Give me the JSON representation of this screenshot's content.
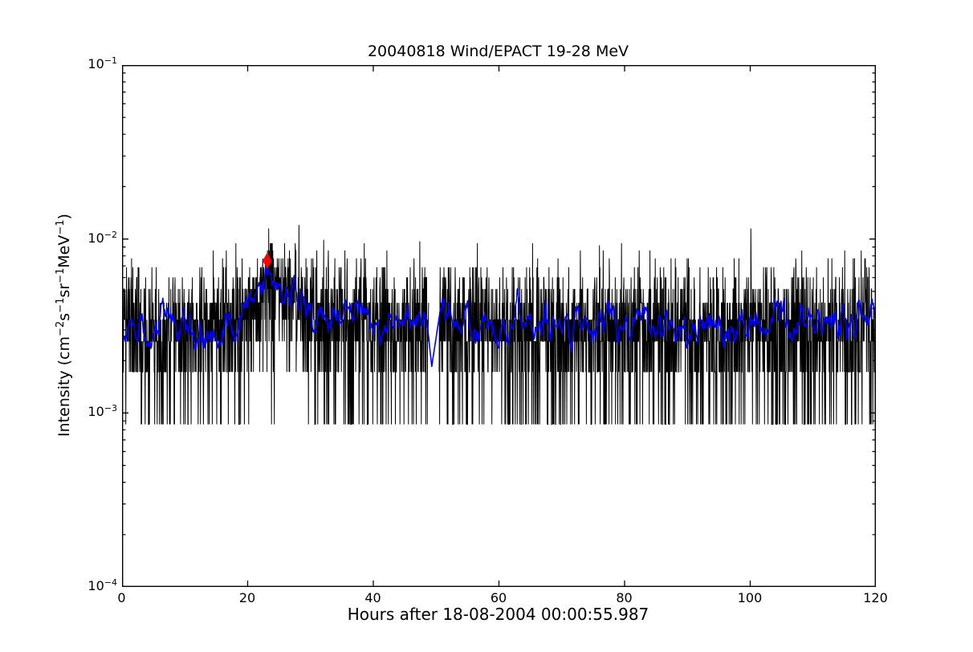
{
  "figure": {
    "background_color": "#ffffff",
    "text_color": "#000000"
  },
  "chart_data": {
    "type": "line",
    "title": "20040818 Wind/EPACT 19-28 MeV",
    "xlabel": "Hours after 18-08-2004 00:00:55.987",
    "ylabel": "Intensity (cm−2s−1sr−1MeV−1)",
    "ylabel_rich": [
      [
        "t",
        "Intensity (cm"
      ],
      [
        "sup",
        "−2"
      ],
      [
        "t",
        "s"
      ],
      [
        "sup",
        "−1"
      ],
      [
        "t",
        "sr"
      ],
      [
        "sup",
        "−1"
      ],
      [
        "t",
        "MeV"
      ],
      [
        "sup",
        "−1"
      ],
      [
        "t",
        ")"
      ]
    ],
    "xlim": [
      0,
      120
    ],
    "ylim": [
      0.0001,
      0.1
    ],
    "yscale": "log",
    "grid": false,
    "legend": "none",
    "x_major_ticks": [
      0,
      20,
      40,
      60,
      80,
      100,
      120
    ],
    "x_tick_labels": [
      "0",
      "20",
      "40",
      "60",
      "80",
      "100",
      "120"
    ],
    "y_major_tick_exponents": [
      -1,
      -2,
      -3,
      -4
    ],
    "y_tick_base": "10",
    "y_minor_ticks_per_decade": [
      2,
      3,
      4,
      5,
      6,
      7,
      8,
      9
    ],
    "tick_direction": "in",
    "series": [
      {
        "name": "raw-intensity",
        "color": "#000000",
        "linewidth": 1.0,
        "style": "noisy-counts",
        "cadence_hours": 0.04,
        "count_quantum": 0.00086,
        "noise_model": "poisson",
        "seed": 20040818,
        "floor_value": 0.00086,
        "typical_band": [
          0.0018,
          0.0065
        ],
        "max_value": 0.0115,
        "gaps": [
          [
            48.8,
            50.45
          ]
        ],
        "extra_spikes": [
          [
            23.35,
            0.0115
          ],
          [
            32.1,
            0.0099
          ],
          [
            47.4,
            0.0097
          ],
          [
            76.0,
            0.0092
          ],
          [
            100.1,
            0.0115
          ]
        ]
      },
      {
        "name": "smoothed-intensity",
        "color": "#0000ff",
        "linewidth": 1.6,
        "style": "line",
        "jitter_sigma_decades": 0.06,
        "jitter_quiet_range": [
          48.5,
          50.9
        ],
        "anchors": [
          [
            0,
            0.0031
          ],
          [
            2,
            0.0032
          ],
          [
            4,
            0.0029
          ],
          [
            6,
            0.0033
          ],
          [
            8,
            0.0031
          ],
          [
            10,
            0.0033
          ],
          [
            12,
            0.003
          ],
          [
            14,
            0.0032
          ],
          [
            16,
            0.0031
          ],
          [
            18,
            0.003
          ],
          [
            19,
            0.0033
          ],
          [
            20,
            0.004
          ],
          [
            21,
            0.0047
          ],
          [
            22,
            0.0053
          ],
          [
            23,
            0.0059
          ],
          [
            24,
            0.0054
          ],
          [
            25,
            0.0051
          ],
          [
            26,
            0.0049
          ],
          [
            27,
            0.0046
          ],
          [
            28,
            0.0044
          ],
          [
            29,
            0.0042
          ],
          [
            30,
            0.0041
          ],
          [
            31,
            0.0039
          ],
          [
            32,
            0.004
          ],
          [
            33,
            0.0038
          ],
          [
            34,
            0.0037
          ],
          [
            36,
            0.0035
          ],
          [
            38,
            0.0034
          ],
          [
            40,
            0.0035
          ],
          [
            42,
            0.0034
          ],
          [
            44,
            0.0033
          ],
          [
            46,
            0.0033
          ],
          [
            48,
            0.0034
          ],
          [
            48.6,
            0.0032
          ],
          [
            49.3,
            0.00185
          ],
          [
            50.7,
            0.004
          ],
          [
            51.5,
            0.0034
          ],
          [
            54,
            0.0035
          ],
          [
            56,
            0.0033
          ],
          [
            58,
            0.0034
          ],
          [
            60,
            0.0032
          ],
          [
            62,
            0.0033
          ],
          [
            64,
            0.0031
          ],
          [
            66,
            0.003
          ],
          [
            68,
            0.0029
          ],
          [
            70,
            0.003
          ],
          [
            72,
            0.0032
          ],
          [
            74,
            0.0031
          ],
          [
            76,
            0.0032
          ],
          [
            78,
            0.0033
          ],
          [
            80,
            0.0032
          ],
          [
            82,
            0.0033
          ],
          [
            84,
            0.0032
          ],
          [
            86,
            0.0031
          ],
          [
            88,
            0.003
          ],
          [
            90,
            0.0032
          ],
          [
            92,
            0.0033
          ],
          [
            94,
            0.0032
          ],
          [
            96,
            0.0033
          ],
          [
            98,
            0.0031
          ],
          [
            100,
            0.0033
          ],
          [
            102,
            0.0032
          ],
          [
            104,
            0.0034
          ],
          [
            106,
            0.0032
          ],
          [
            108,
            0.0033
          ],
          [
            110,
            0.0031
          ],
          [
            112,
            0.0032
          ],
          [
            114,
            0.0033
          ],
          [
            116,
            0.0032
          ],
          [
            118,
            0.0034
          ],
          [
            120,
            0.0033
          ]
        ]
      }
    ],
    "marker": {
      "name": "event-onset-marker",
      "shape": "diamond",
      "color": "#ff0000",
      "x": 23.1,
      "y": 0.0075
    }
  }
}
